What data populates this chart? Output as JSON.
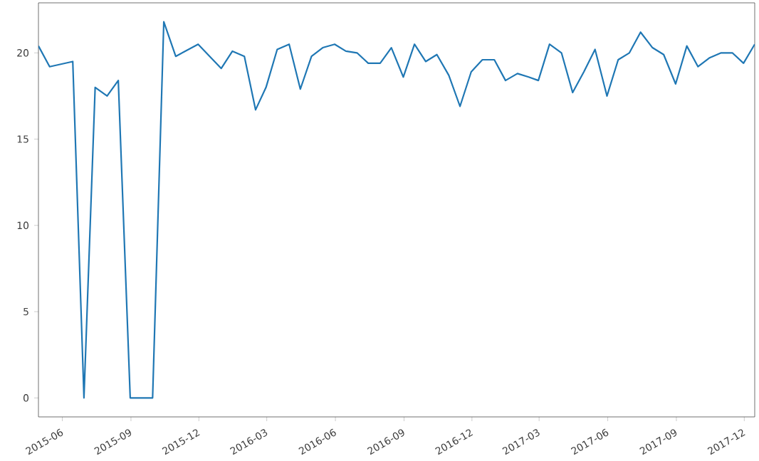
{
  "chart_data": {
    "type": "line",
    "x": [
      "2015-04-30",
      "2015-05-15",
      "2015-06-15",
      "2015-06-30",
      "2015-07-15",
      "2015-07-31",
      "2015-08-15",
      "2015-08-31",
      "2015-09-30",
      "2015-10-15",
      "2015-10-31",
      "2015-11-30",
      "2015-12-31",
      "2016-01-15",
      "2016-01-31",
      "2016-02-15",
      "2016-02-29",
      "2016-03-15",
      "2016-03-31",
      "2016-04-15",
      "2016-04-30",
      "2016-05-15",
      "2016-05-31",
      "2016-06-15",
      "2016-06-30",
      "2016-07-15",
      "2016-07-31",
      "2016-08-15",
      "2016-08-31",
      "2016-09-15",
      "2016-09-30",
      "2016-10-15",
      "2016-10-31",
      "2016-11-15",
      "2016-11-30",
      "2016-12-15",
      "2016-12-31",
      "2017-01-15",
      "2017-01-31",
      "2017-02-15",
      "2017-02-28",
      "2017-03-15",
      "2017-03-31",
      "2017-04-15",
      "2017-04-30",
      "2017-05-15",
      "2017-05-31",
      "2017-06-15",
      "2017-06-30",
      "2017-07-15",
      "2017-07-31",
      "2017-08-15",
      "2017-08-31",
      "2017-09-15",
      "2017-09-30",
      "2017-10-15",
      "2017-10-31",
      "2017-11-15",
      "2017-11-30",
      "2017-12-15"
    ],
    "series": [
      {
        "color": "#1f77b4",
        "values": [
          20.4,
          19.2,
          19.5,
          0,
          18.0,
          17.5,
          18.4,
          0,
          0,
          21.8,
          19.8,
          20.5,
          19.1,
          20.1,
          19.8,
          16.7,
          18.0,
          20.2,
          20.5,
          17.9,
          19.8,
          20.3,
          20.5,
          20.1,
          20.0,
          19.4,
          19.4,
          20.3,
          18.6,
          20.5,
          19.5,
          19.9,
          18.7,
          16.9,
          18.9,
          19.6,
          19.6,
          18.4,
          18.8,
          18.6,
          18.4,
          20.5,
          20.0,
          17.7,
          18.9,
          20.2,
          17.5,
          19.6,
          20.0,
          21.2,
          20.3,
          19.9,
          18.2,
          20.4,
          19.2,
          19.7,
          20.0,
          20.0,
          19.4,
          20.5
        ]
      }
    ],
    "xlim": [
      "2015-04-30",
      "2017-12-15"
    ],
    "ylim": [
      -1.1,
      22.9
    ],
    "yticks": [
      0,
      5,
      10,
      15,
      20
    ],
    "xticks": [
      {
        "value": "2015-06-01",
        "label": "2015-06"
      },
      {
        "value": "2015-09-01",
        "label": "2015-09"
      },
      {
        "value": "2015-12-01",
        "label": "2015-12"
      },
      {
        "value": "2016-03-01",
        "label": "2016-03"
      },
      {
        "value": "2016-06-01",
        "label": "2016-06"
      },
      {
        "value": "2016-09-01",
        "label": "2016-09"
      },
      {
        "value": "2016-12-01",
        "label": "2016-12"
      },
      {
        "value": "2017-03-01",
        "label": "2017-03"
      },
      {
        "value": "2017-06-01",
        "label": "2017-06"
      },
      {
        "value": "2017-09-01",
        "label": "2017-09"
      },
      {
        "value": "2017-12-01",
        "label": "2017-12"
      }
    ],
    "grid": false,
    "marker": "none",
    "line_style": "solid"
  }
}
